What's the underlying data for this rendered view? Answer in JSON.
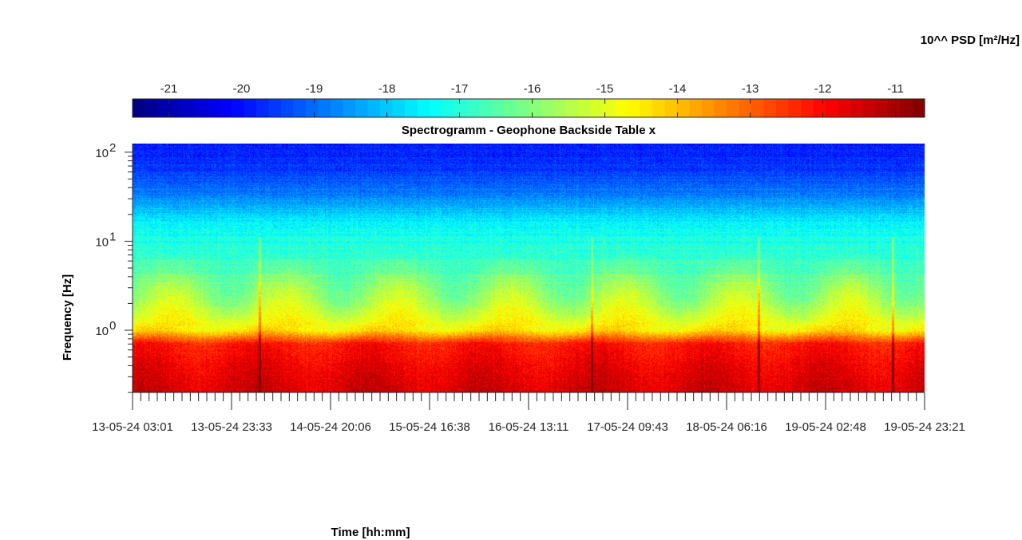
{
  "chart_data": {
    "type": "heatmap",
    "title": "Spectrogramm - Geophone Backside Table x",
    "xlabel": "Time [hh:mm]",
    "ylabel": "Frequency [Hz]",
    "yscale": "log",
    "ylim": [
      0.2,
      125
    ],
    "colorbar": {
      "title": "10^^ PSD [m²/Hz]",
      "colormap": "jet",
      "range": [
        -21.5,
        -10.6
      ],
      "ticks": [
        -21,
        -20,
        -19,
        -18,
        -17,
        -16,
        -15,
        -14,
        -13,
        -12,
        -11
      ],
      "tick_labels": [
        "-21",
        "-20",
        "-19",
        "-18",
        "-17",
        "-16",
        "-15",
        "-14",
        "-13",
        "-12",
        "-11"
      ]
    },
    "x_ticks": [
      {
        "date": "13-05-24",
        "time": "03:01"
      },
      {
        "date": "13-05-24",
        "time": "23:33"
      },
      {
        "date": "14-05-24",
        "time": "20:06"
      },
      {
        "date": "15-05-24",
        "time": "16:38"
      },
      {
        "date": "16-05-24",
        "time": "13:11"
      },
      {
        "date": "17-05-24",
        "time": "09:43"
      },
      {
        "date": "18-05-24",
        "time": "06:16"
      },
      {
        "date": "19-05-24",
        "time": "02:48"
      },
      {
        "date": "19-05-24",
        "time": "23:21"
      }
    ],
    "y_ticks": [
      {
        "value": 1,
        "base": "10",
        "exp": "0"
      },
      {
        "value": 10,
        "base": "10",
        "exp": "1"
      },
      {
        "value": 100,
        "base": "10",
        "exp": "2"
      }
    ],
    "psd_log10_profile": [
      {
        "freq_hz": 0.2,
        "value": -11.5
      },
      {
        "freq_hz": 0.4,
        "value": -11.8
      },
      {
        "freq_hz": 0.7,
        "value": -12.2
      },
      {
        "freq_hz": 1.0,
        "value": -14.5
      },
      {
        "freq_hz": 2.0,
        "value": -15.5
      },
      {
        "freq_hz": 4.0,
        "value": -16.2
      },
      {
        "freq_hz": 7.0,
        "value": -16.9
      },
      {
        "freq_hz": 15.0,
        "value": -17.4
      },
      {
        "freq_hz": 30.0,
        "value": -18.6
      },
      {
        "freq_hz": 60.0,
        "value": -19.5
      },
      {
        "freq_hz": 125.0,
        "value": -19.9
      }
    ],
    "transient_events_time_fraction": [
      0.16,
      0.58,
      0.79,
      0.96
    ]
  }
}
